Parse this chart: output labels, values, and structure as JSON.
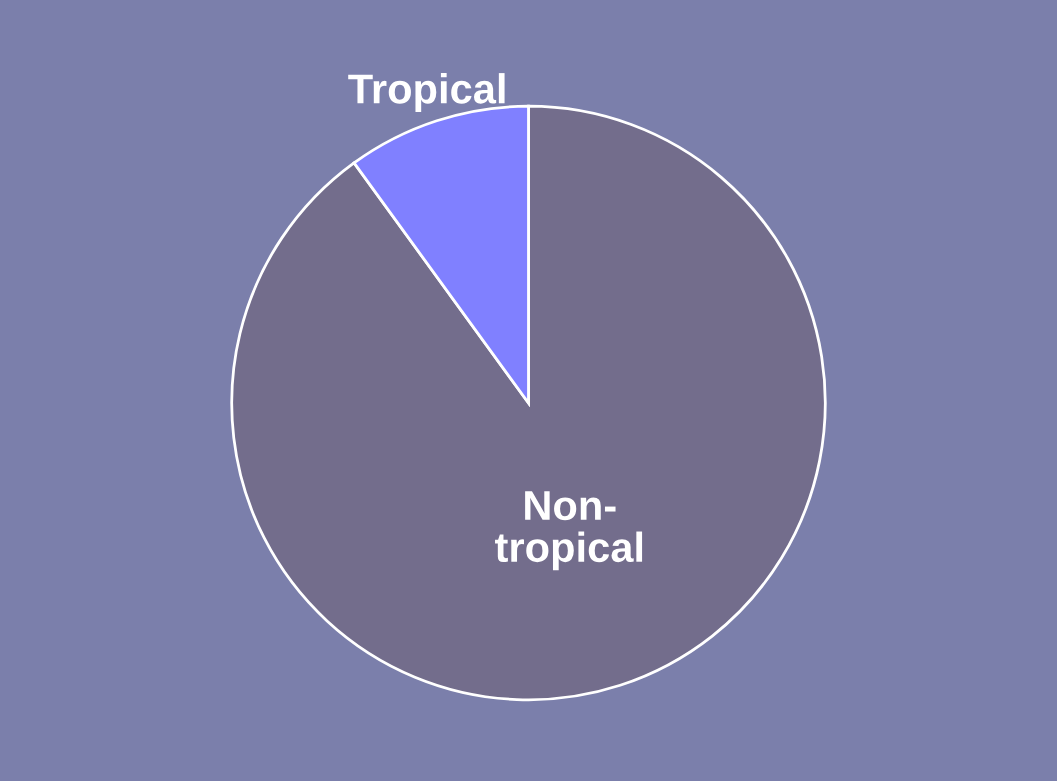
{
  "chart_data": {
    "type": "pie",
    "categories": [
      "Non-tropical",
      "Tropical"
    ],
    "values": [
      90,
      10
    ],
    "colors": [
      "#736d8c",
      "#8080ff"
    ]
  }
}
